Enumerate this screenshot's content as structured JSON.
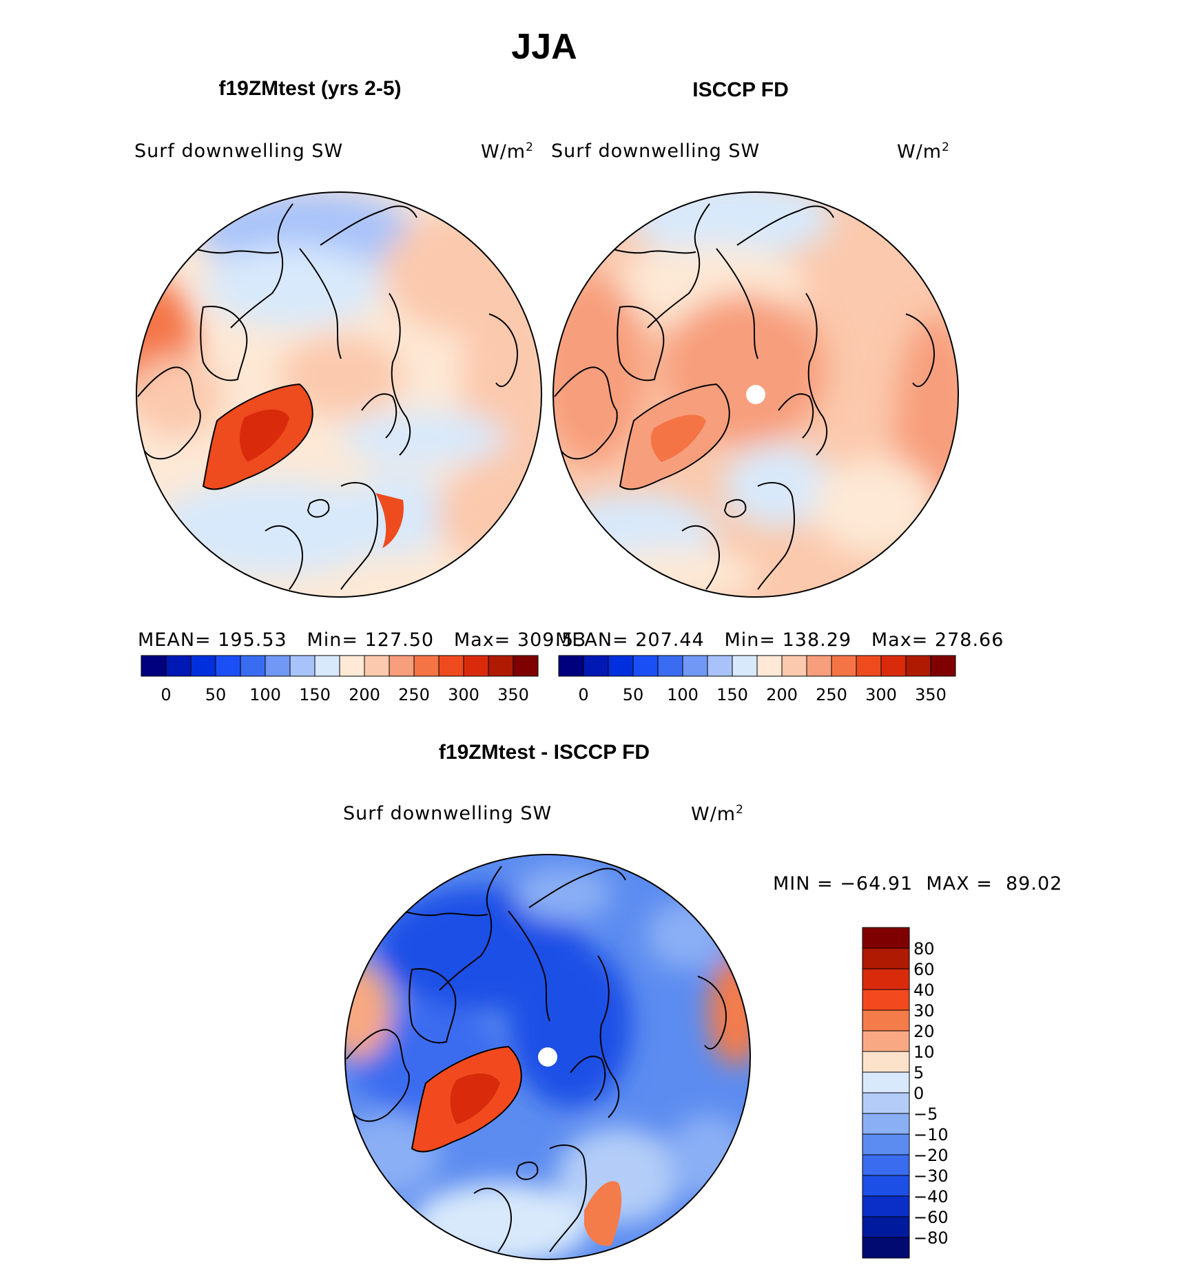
{
  "figure": {
    "season": "JJA",
    "bg_color": "#ffffff"
  },
  "panels": {
    "model": {
      "title": "f19ZMtest (yrs 2-5)",
      "variable": "Surf downwelling SW",
      "units_base": "W/m",
      "units_exp": "2",
      "mean_label": "MEAN=",
      "mean_value": "195.53",
      "min_label": "Min=",
      "min_value": "127.50",
      "max_label": "Max=",
      "max_value": "309.53"
    },
    "obs": {
      "title": "ISCCP FD",
      "variable": "Surf downwelling SW",
      "units_base": "W/m",
      "units_exp": "2",
      "mean_label": "MEAN=",
      "mean_value": "207.44",
      "min_label": "Min=",
      "min_value": "138.29",
      "max_label": "Max=",
      "max_value": "278.66"
    },
    "diff": {
      "title": "f19ZMtest - ISCCP FD",
      "variable": "Surf downwelling SW",
      "units_base": "W/m",
      "units_exp": "2",
      "min_label": "MIN =",
      "min_value": "−64.91",
      "max_label": "MAX =",
      "max_value": "89.02"
    }
  },
  "chart_data": [
    {
      "type": "heatmap",
      "name": "model",
      "colorbar": {
        "orientation": "horizontal",
        "tick_labels": [
          "0",
          "50",
          "100",
          "150",
          "200",
          "250",
          "300",
          "350"
        ],
        "colors": [
          "#00007f",
          "#0018b4",
          "#0030dd",
          "#1a4ff5",
          "#3a6cf2",
          "#7198f5",
          "#a8c3fa",
          "#d8e9fb",
          "#fde9d6",
          "#fbc9ad",
          "#f79e7c",
          "#f47446",
          "#ee4b1e",
          "#d92b0c",
          "#af1a02",
          "#7f0000"
        ]
      }
    },
    {
      "type": "heatmap",
      "name": "obs",
      "colorbar": {
        "orientation": "horizontal",
        "tick_labels": [
          "0",
          "50",
          "100",
          "150",
          "200",
          "250",
          "300",
          "350"
        ],
        "colors": [
          "#00007f",
          "#0018b4",
          "#0030dd",
          "#1a4ff5",
          "#3a6cf2",
          "#7198f5",
          "#a8c3fa",
          "#d8e9fb",
          "#fde9d6",
          "#fbc9ad",
          "#f79e7c",
          "#f47446",
          "#ee4b1e",
          "#d92b0c",
          "#af1a02",
          "#7f0000"
        ]
      }
    },
    {
      "type": "heatmap",
      "name": "diff",
      "colorbar": {
        "orientation": "vertical",
        "tick_labels": [
          "80",
          "60",
          "40",
          "30",
          "20",
          "10",
          "5",
          "0",
          "−5",
          "−10",
          "−20",
          "−30",
          "−40",
          "−60",
          "−80"
        ],
        "colors": [
          "#7f0000",
          "#af1a02",
          "#d92b0c",
          "#f24a1e",
          "#f47b4a",
          "#f8a983",
          "#fde2cb",
          "#d8e9fb",
          "#b3cdf8",
          "#8aaff5",
          "#5c8cf0",
          "#3a6cf0",
          "#1c4fe6",
          "#0a2fc9",
          "#001a9e",
          "#000a70"
        ]
      }
    }
  ],
  "colors": {
    "land_outline": "#000000",
    "circle_edge": "#000000",
    "pole_mask": "#ffffff"
  }
}
